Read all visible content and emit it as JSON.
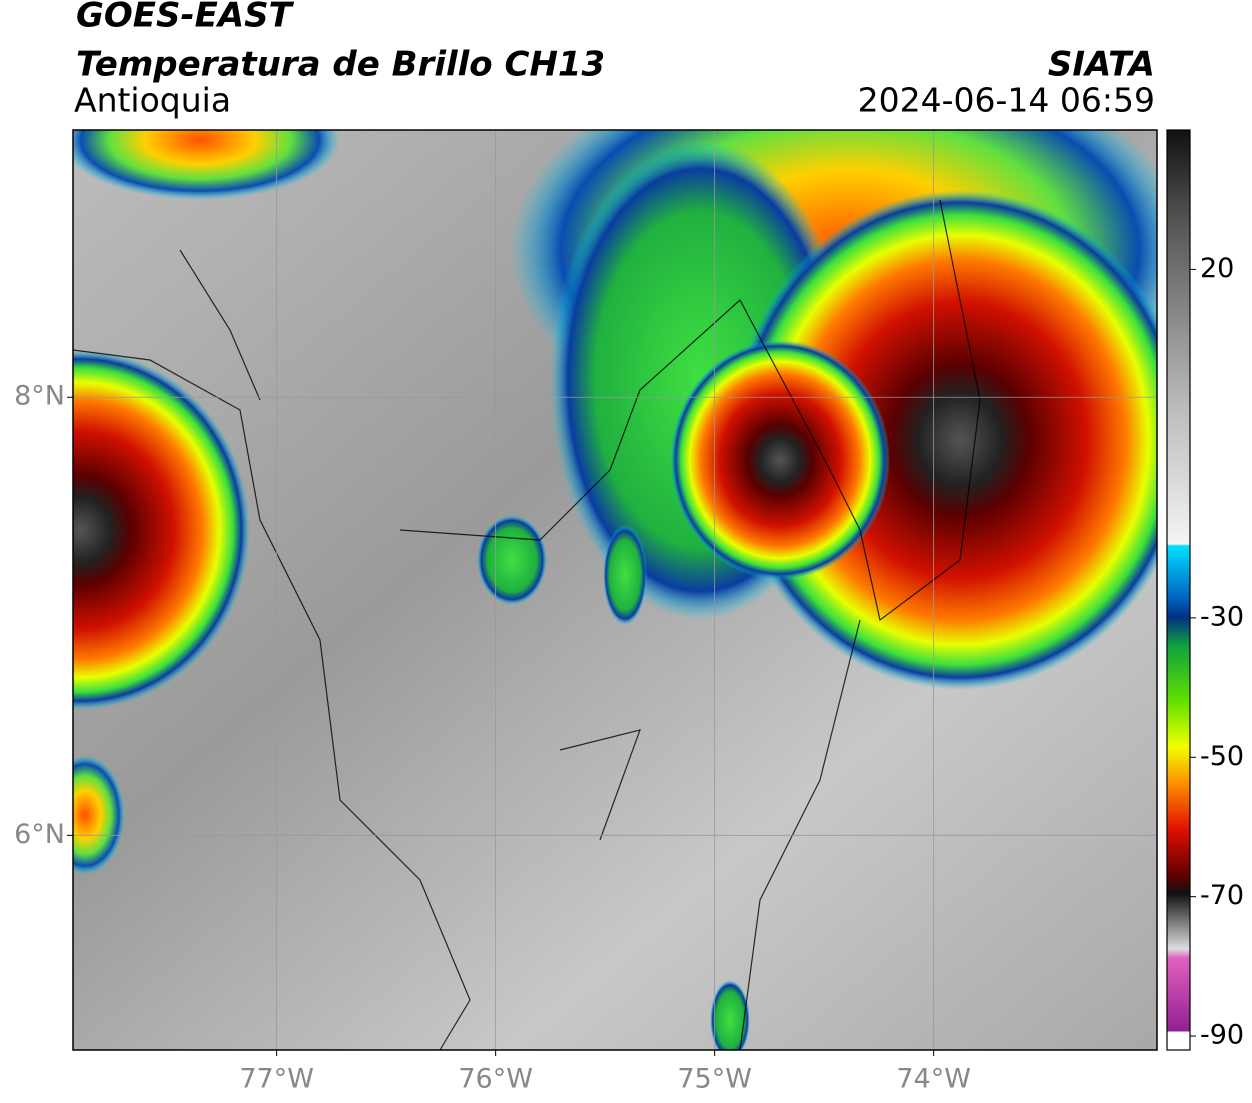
{
  "header": {
    "title": "GOES-EAST",
    "subtitle": "Temperatura de Brillo CH13",
    "region": "Antioquia",
    "source": "SIATA",
    "datetime": "2024-06-14 06:59"
  },
  "map": {
    "xlim": [
      -77.93,
      -72.98
    ],
    "ylim": [
      5.02,
      9.22
    ],
    "xticks": [
      {
        "value": -77,
        "label": "77°W"
      },
      {
        "value": -76,
        "label": "76°W"
      },
      {
        "value": -75,
        "label": "75°W"
      },
      {
        "value": -74,
        "label": "74°W"
      }
    ],
    "yticks": [
      {
        "value": 8,
        "label": "8°N"
      },
      {
        "value": 6,
        "label": "6°N"
      }
    ],
    "grid": true
  },
  "colorbar": {
    "lim": [
      -92,
      40
    ],
    "ticks": [
      20,
      -30,
      -50,
      -70,
      -90
    ]
  }
}
